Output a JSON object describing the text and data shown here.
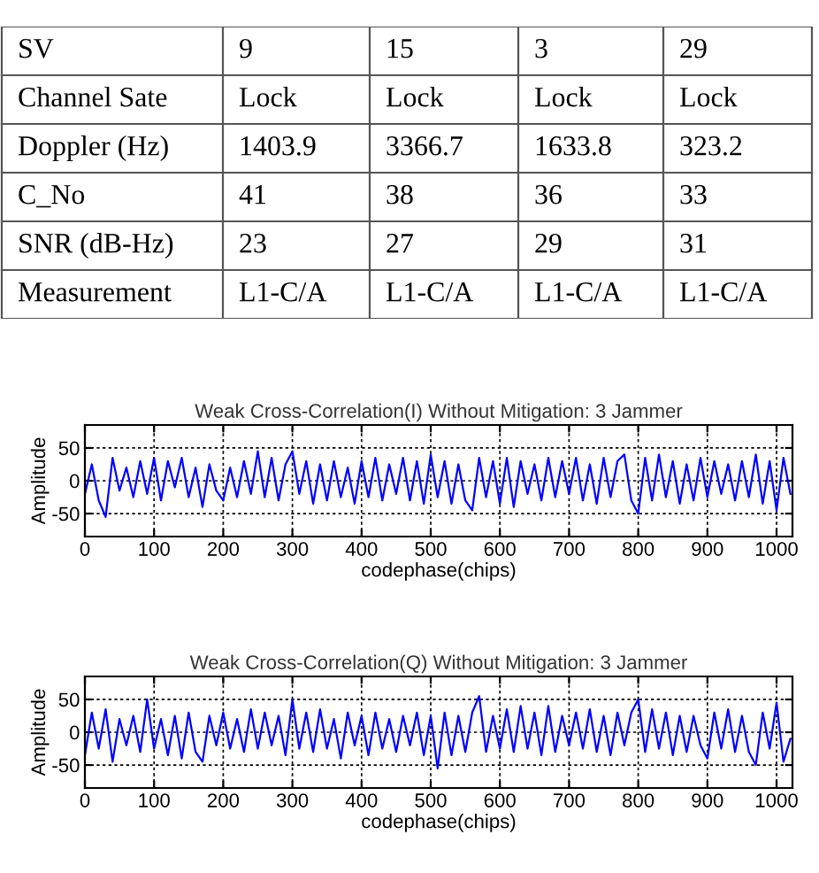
{
  "chart_data": [
    {
      "type": "other",
      "categories": [
        "SV",
        "9",
        "15",
        "3",
        "29"
      ],
      "y_categories": [
        "Channel Sate",
        "Doppler (Hz)",
        "C_No",
        "SNR (dB-Hz)",
        "Measurement"
      ],
      "cell_labels": [
        [
          "Lock",
          "Lock",
          "Lock",
          "Lock"
        ],
        [
          "1403.9",
          "3366.7",
          "1633.8",
          "323.2"
        ],
        [
          "41",
          "38",
          "36",
          "33"
        ],
        [
          "23",
          "27",
          "29",
          "31"
        ],
        [
          "L1-C/A",
          "L1-C/A",
          "L1-C/A",
          "L1-C/A"
        ]
      ]
    },
    {
      "type": "line",
      "title": "Weak Cross-Correlation(I) Without Mitigation: 3 Jammer",
      "xlabel": "codephase(chips)",
      "ylabel": "Amplitude",
      "x": [
        0,
        10,
        20,
        30,
        40,
        50,
        60,
        70,
        80,
        90,
        100,
        110,
        120,
        130,
        140,
        150,
        160,
        170,
        180,
        190,
        200,
        210,
        220,
        230,
        240,
        250,
        260,
        270,
        280,
        290,
        300,
        310,
        320,
        330,
        340,
        350,
        360,
        370,
        380,
        390,
        400,
        410,
        420,
        430,
        440,
        450,
        460,
        470,
        480,
        490,
        500,
        510,
        520,
        530,
        540,
        550,
        560,
        570,
        580,
        590,
        600,
        610,
        620,
        630,
        640,
        650,
        660,
        670,
        680,
        690,
        700,
        710,
        720,
        730,
        740,
        750,
        760,
        770,
        780,
        790,
        800,
        810,
        820,
        830,
        840,
        850,
        860,
        870,
        880,
        890,
        900,
        910,
        920,
        930,
        940,
        950,
        960,
        970,
        980,
        990,
        1000,
        1010,
        1020
      ],
      "series": [
        {
          "color": "#0000ff",
          "values": [
            -20,
            25,
            -30,
            -55,
            35,
            -15,
            20,
            -25,
            30,
            -20,
            35,
            -30,
            30,
            -10,
            35,
            -25,
            20,
            -40,
            25,
            -15,
            -30,
            20,
            -25,
            30,
            -20,
            45,
            -25,
            35,
            -30,
            25,
            45,
            -20,
            30,
            -35,
            25,
            -30,
            30,
            -25,
            20,
            -35,
            30,
            -25,
            35,
            -30,
            25,
            -20,
            35,
            -30,
            30,
            -35,
            40,
            -25,
            30,
            -35,
            25,
            -30,
            -45,
            35,
            -25,
            30,
            -35,
            35,
            -40,
            30,
            -20,
            25,
            -30,
            35,
            -25,
            30,
            -20,
            35,
            -30,
            25,
            -35,
            35,
            -25,
            30,
            40,
            -30,
            -50,
            35,
            -30,
            40,
            -25,
            30,
            -35,
            25,
            -30,
            35,
            -25,
            30,
            -20,
            25,
            -30,
            30,
            -25,
            40,
            -35,
            30,
            -45,
            35,
            -20
          ]
        }
      ],
      "xlim": [
        0,
        1023
      ],
      "ylim": [
        -85,
        85
      ],
      "xticks": [
        0,
        100,
        200,
        300,
        400,
        500,
        600,
        700,
        800,
        900,
        1000
      ],
      "yticks": [
        -50,
        0,
        50
      ],
      "grid": true,
      "line_style": "solid"
    },
    {
      "type": "line",
      "title": "Weak Cross-Correlation(Q) Without Mitigation: 3 Jammer",
      "xlabel": "codephase(chips)",
      "ylabel": "Amplitude",
      "x": [
        0,
        10,
        20,
        30,
        40,
        50,
        60,
        70,
        80,
        90,
        100,
        110,
        120,
        130,
        140,
        150,
        160,
        170,
        180,
        190,
        200,
        210,
        220,
        230,
        240,
        250,
        260,
        270,
        280,
        290,
        300,
        310,
        320,
        330,
        340,
        350,
        360,
        370,
        380,
        390,
        400,
        410,
        420,
        430,
        440,
        450,
        460,
        470,
        480,
        490,
        500,
        510,
        520,
        530,
        540,
        550,
        560,
        570,
        580,
        590,
        600,
        610,
        620,
        630,
        640,
        650,
        660,
        670,
        680,
        690,
        700,
        710,
        720,
        730,
        740,
        750,
        760,
        770,
        780,
        790,
        800,
        810,
        820,
        830,
        840,
        850,
        860,
        870,
        880,
        890,
        900,
        910,
        920,
        930,
        940,
        950,
        960,
        970,
        980,
        990,
        1000,
        1010,
        1020
      ],
      "series": [
        {
          "color": "#0000ff",
          "values": [
            -35,
            30,
            -25,
            35,
            -45,
            20,
            -20,
            25,
            -30,
            50,
            -25,
            20,
            -35,
            25,
            -40,
            30,
            -30,
            -45,
            25,
            -20,
            30,
            -25,
            20,
            -30,
            35,
            -25,
            30,
            -20,
            25,
            -35,
            50,
            -25,
            30,
            -30,
            35,
            -25,
            20,
            -40,
            30,
            -20,
            25,
            -35,
            30,
            -25,
            20,
            -30,
            25,
            -20,
            30,
            -35,
            25,
            -55,
            30,
            -35,
            25,
            -30,
            30,
            55,
            -30,
            25,
            -25,
            35,
            -30,
            40,
            -25,
            30,
            -35,
            40,
            -30,
            25,
            -20,
            30,
            -25,
            35,
            -30,
            25,
            -35,
            30,
            -20,
            30,
            50,
            -30,
            35,
            -25,
            30,
            -35,
            25,
            -30,
            25,
            -20,
            -40,
            30,
            -25,
            35,
            -30,
            25,
            -30,
            -50,
            30,
            -25,
            45,
            -45,
            -10
          ]
        }
      ],
      "xlim": [
        0,
        1023
      ],
      "ylim": [
        -85,
        85
      ],
      "xticks": [
        0,
        100,
        200,
        300,
        400,
        500,
        600,
        700,
        800,
        900,
        1000
      ],
      "yticks": [
        -50,
        0,
        50
      ],
      "grid": true,
      "line_style": "solid"
    }
  ]
}
